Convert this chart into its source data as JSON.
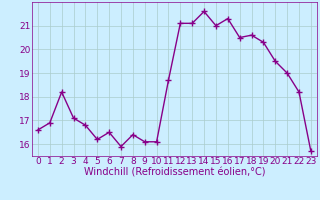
{
  "hours": [
    0,
    1,
    2,
    3,
    4,
    5,
    6,
    7,
    8,
    9,
    10,
    11,
    12,
    13,
    14,
    15,
    16,
    17,
    18,
    19,
    20,
    21,
    22,
    23
  ],
  "values": [
    16.6,
    16.9,
    18.2,
    17.1,
    16.8,
    16.2,
    16.5,
    15.9,
    16.4,
    16.1,
    16.1,
    18.7,
    21.1,
    21.1,
    21.6,
    21.0,
    21.3,
    20.5,
    20.6,
    20.3,
    19.5,
    19.0,
    18.2,
    15.7
  ],
  "line_color": "#880088",
  "marker": "+",
  "marker_size": 4,
  "bg_color": "#cceeff",
  "grid_color": "#aacccc",
  "xlabel": "Windchill (Refroidissement éolien,°C)",
  "ylim": [
    15.5,
    22.0
  ],
  "xlim": [
    -0.5,
    23.5
  ],
  "yticks": [
    16,
    17,
    18,
    19,
    20,
    21
  ],
  "xticks": [
    0,
    1,
    2,
    3,
    4,
    5,
    6,
    7,
    8,
    9,
    10,
    11,
    12,
    13,
    14,
    15,
    16,
    17,
    18,
    19,
    20,
    21,
    22,
    23
  ],
  "tick_label_color": "#880088",
  "font_size": 6.5,
  "xlabel_fontsize": 7.0,
  "linewidth": 1.0,
  "markeredgewidth": 1.0
}
